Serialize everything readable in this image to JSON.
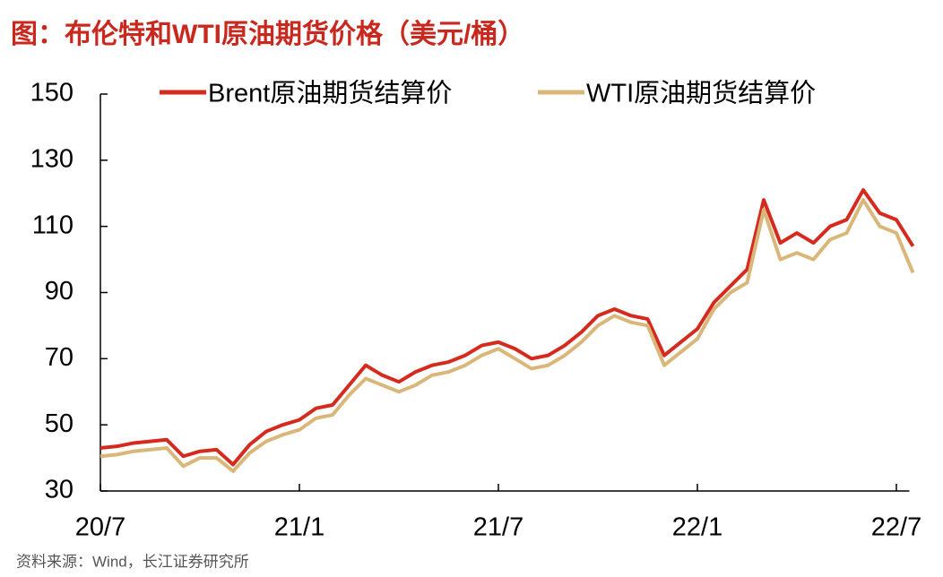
{
  "chart_data": {
    "type": "line",
    "title": "图：布伦特和WTI原油期货价格（美元/桶）",
    "source": "资料来源：Wind，长江证券研究所",
    "categories": [
      "20/7",
      null,
      null,
      null,
      null,
      null,
      null,
      null,
      null,
      null,
      null,
      null,
      "21/1",
      null,
      null,
      null,
      null,
      null,
      null,
      null,
      null,
      null,
      null,
      null,
      "21/7",
      null,
      null,
      null,
      null,
      null,
      null,
      null,
      null,
      null,
      null,
      null,
      "22/1",
      null,
      null,
      null,
      null,
      null,
      null,
      null,
      null,
      null,
      null,
      null,
      "22/7",
      null
    ],
    "series": [
      {
        "name": "Brent原油期货结算价",
        "color": "#d42b1e",
        "values": [
          43,
          43.5,
          44.5,
          45,
          45.5,
          40.5,
          42,
          42.5,
          38,
          44,
          48,
          50,
          51.5,
          55,
          56,
          62,
          68,
          65,
          63,
          66,
          68,
          69,
          71,
          74,
          75,
          73,
          70,
          71,
          74,
          78,
          83,
          85,
          83,
          82,
          71,
          75,
          79,
          87,
          92,
          97,
          118,
          105,
          108,
          105,
          110,
          112,
          121,
          114,
          112,
          104
        ]
      },
      {
        "name": "WTI原油期货结算价",
        "color": "#d9b77a",
        "values": [
          40.5,
          41,
          42,
          42.5,
          43,
          37.5,
          40,
          40,
          36,
          41.5,
          45,
          47,
          48.5,
          52,
          53,
          59,
          64,
          62,
          60,
          62,
          65,
          66,
          68,
          71,
          73,
          70,
          67,
          68,
          71,
          75,
          80,
          83,
          81,
          80,
          68,
          72,
          76,
          85,
          90,
          93,
          115,
          100,
          102,
          100,
          106,
          108,
          118,
          110,
          108,
          96
        ]
      }
    ],
    "ylim": [
      30,
      150
    ],
    "yticks": [
      30,
      50,
      70,
      90,
      110,
      130,
      150
    ]
  }
}
